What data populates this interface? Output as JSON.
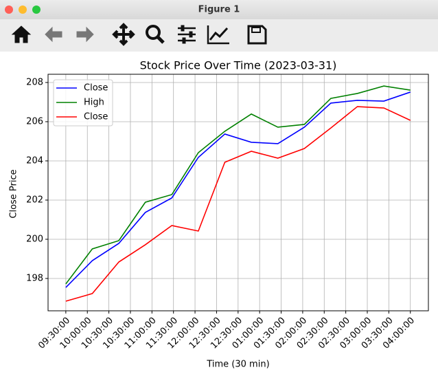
{
  "window": {
    "title": "Figure 1"
  },
  "chart_data": {
    "type": "line",
    "title": "Stock Price Over Time (2023-03-31)",
    "xlabel": "Time (30 min)",
    "ylabel": "Close Price",
    "x": [
      0,
      1,
      2,
      3,
      4,
      5,
      6,
      7,
      8,
      9,
      10,
      11,
      12,
      13
    ],
    "series": [
      {
        "name": "Close",
        "color": "#0000ff",
        "values": [
          197.54,
          198.91,
          199.79,
          201.37,
          202.11,
          204.18,
          205.37,
          204.95,
          204.88,
          205.72,
          206.95,
          207.09,
          207.05,
          207.51
        ]
      },
      {
        "name": "High",
        "color": "#008000",
        "values": [
          197.72,
          199.51,
          199.93,
          201.89,
          202.28,
          204.42,
          205.51,
          206.39,
          205.72,
          205.86,
          207.19,
          207.44,
          207.82,
          207.61
        ]
      },
      {
        "name": "Close",
        "color": "#ff0000",
        "values": [
          196.84,
          197.23,
          198.84,
          199.72,
          200.7,
          200.42,
          203.93,
          204.49,
          204.14,
          204.63,
          205.68,
          206.77,
          206.7,
          206.07
        ]
      }
    ],
    "xlim": [
      -0.67,
      13.68
    ],
    "xticks": [
      {
        "value": 0,
        "label": "09:30:00"
      },
      {
        "value": 0.8125,
        "label": "10:00:00"
      },
      {
        "value": 1.625,
        "label": "10:30:00"
      },
      {
        "value": 2.4375,
        "label": "10:30:00"
      },
      {
        "value": 3.25,
        "label": "11:00:00"
      },
      {
        "value": 4.0625,
        "label": "11:30:00"
      },
      {
        "value": 4.875,
        "label": "12:00:00"
      },
      {
        "value": 5.6875,
        "label": "12:30:00"
      },
      {
        "value": 6.5,
        "label": "12:30:00"
      },
      {
        "value": 7.3125,
        "label": "01:00:00"
      },
      {
        "value": 8.125,
        "label": "01:30:00"
      },
      {
        "value": 8.9375,
        "label": "02:00:00"
      },
      {
        "value": 9.75,
        "label": "02:30:00"
      },
      {
        "value": 10.5625,
        "label": "02:30:00"
      },
      {
        "value": 11.375,
        "label": "03:00:00"
      },
      {
        "value": 12.1875,
        "label": "03:30:00"
      },
      {
        "value": 13,
        "label": "04:00:00"
      }
    ],
    "ylim": [
      196.35,
      208.42
    ],
    "yticks": [
      198,
      200,
      202,
      204,
      206,
      208
    ],
    "grid": true,
    "legend": "upper left"
  }
}
